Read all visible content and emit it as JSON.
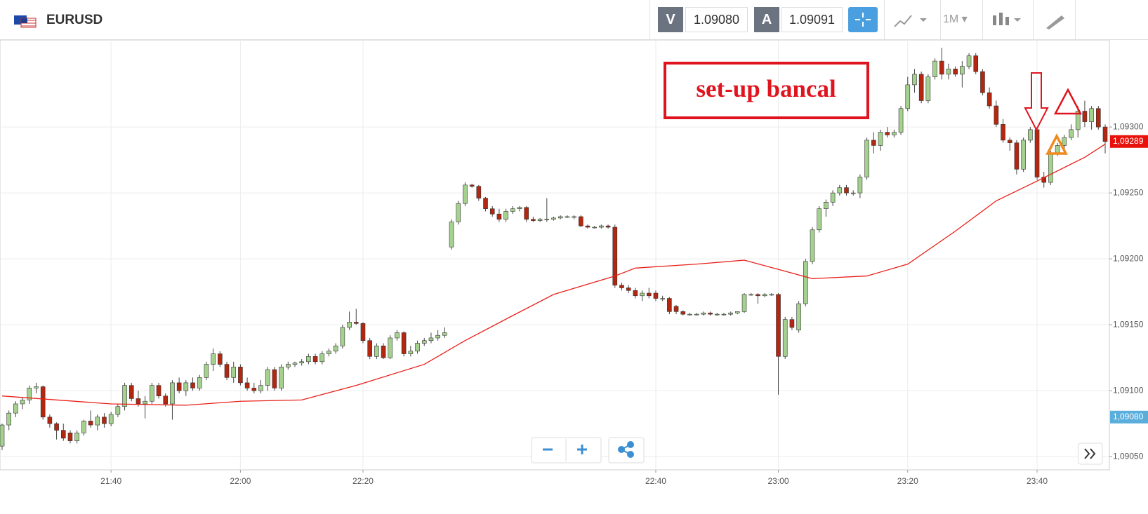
{
  "toolbar": {
    "symbol": "EURUSD",
    "bid_label": "V",
    "bid": "1.09080",
    "ask_label": "A",
    "ask": "1.09091",
    "timeframe": "1M"
  },
  "chart_data": {
    "type": "candlestick",
    "annotation": "set-up bancal",
    "up_color": "#a5d18f",
    "down_color": "#b3260f",
    "ylim": [
      1.0904,
      1.09366
    ],
    "yticks": [
      {
        "value": 1.0905,
        "label": "1,09050"
      },
      {
        "value": 1.091,
        "label": "1,09100"
      },
      {
        "value": 1.0915,
        "label": "1,09150"
      },
      {
        "value": 1.092,
        "label": "1,09200"
      },
      {
        "value": 1.0925,
        "label": "1,09250"
      },
      {
        "value": 1.093,
        "label": "1,09300"
      }
    ],
    "xlim": [
      0,
      162
    ],
    "xticks": [
      {
        "value": 16,
        "label": "21:40"
      },
      {
        "value": 35,
        "label": "22:00"
      },
      {
        "value": 53,
        "label": "22:20"
      },
      {
        "value": 96,
        "label": "22:40"
      },
      {
        "value": 114,
        "label": "23:00"
      },
      {
        "value": 133,
        "label": "23:20"
      },
      {
        "value": 152,
        "label": "23:40"
      }
    ],
    "grid": true,
    "price_tags": [
      {
        "value": 1.09289,
        "label": "1,09289",
        "color": "#e8120c"
      },
      {
        "value": 1.0908,
        "label": "1,09080",
        "color": "#5aaedc"
      }
    ],
    "ma": {
      "color": "#e8201a",
      "x": [
        0,
        16,
        27,
        35,
        44,
        52,
        62,
        68,
        75,
        81,
        90,
        93,
        102,
        109,
        114,
        119,
        127,
        133,
        140,
        146,
        152,
        159,
        162
      ],
      "values": [
        1.09096,
        1.0909,
        1.09089,
        1.09092,
        1.09093,
        1.09104,
        1.0912,
        1.09138,
        1.09157,
        1.09173,
        1.09187,
        1.09193,
        1.09196,
        1.09199,
        1.09192,
        1.09185,
        1.09187,
        1.09196,
        1.09221,
        1.09244,
        1.09259,
        1.09277,
        1.09287
      ]
    },
    "candles": [
      [
        1.09058,
        1.09075,
        1.09055,
        1.09074
      ],
      [
        1.09074,
        1.09085,
        1.0907,
        1.09083
      ],
      [
        1.09083,
        1.09092,
        1.0908,
        1.0909
      ],
      [
        1.0909,
        1.09095,
        1.09086,
        1.09093
      ],
      [
        1.09093,
        1.09104,
        1.0909,
        1.09102
      ],
      [
        1.09102,
        1.09106,
        1.09098,
        1.09103
      ],
      [
        1.09103,
        1.09104,
        1.09078,
        1.0908
      ],
      [
        1.0908,
        1.09082,
        1.09072,
        1.09075
      ],
      [
        1.09075,
        1.09076,
        1.09063,
        1.0907
      ],
      [
        1.0907,
        1.09075,
        1.09062,
        1.09064
      ],
      [
        1.09068,
        1.0907,
        1.0906,
        1.09062
      ],
      [
        1.09062,
        1.0907,
        1.0906,
        1.09068
      ],
      [
        1.09068,
        1.09078,
        1.09066,
        1.09077
      ],
      [
        1.09077,
        1.09085,
        1.09072,
        1.09074
      ],
      [
        1.09074,
        1.09082,
        1.0907,
        1.0908
      ],
      [
        1.0908,
        1.09083,
        1.09072,
        1.09075
      ],
      [
        1.09075,
        1.09084,
        1.09073,
        1.09082
      ],
      [
        1.09082,
        1.0909,
        1.0908,
        1.09088
      ],
      [
        1.09088,
        1.09106,
        1.09085,
        1.09104
      ],
      [
        1.09104,
        1.09106,
        1.09092,
        1.09094
      ],
      [
        1.09094,
        1.091,
        1.09088,
        1.0909
      ],
      [
        1.0909,
        1.09096,
        1.09079,
        1.09092
      ],
      [
        1.09092,
        1.09106,
        1.0909,
        1.09104
      ],
      [
        1.09104,
        1.09106,
        1.09094,
        1.09096
      ],
      [
        1.09096,
        1.09098,
        1.09088,
        1.0909
      ],
      [
        1.0909,
        1.09108,
        1.09078,
        1.09106
      ],
      [
        1.09106,
        1.0911,
        1.09098,
        1.091
      ],
      [
        1.091,
        1.09108,
        1.09096,
        1.09106
      ],
      [
        1.09106,
        1.0911,
        1.091,
        1.09102
      ],
      [
        1.09102,
        1.09112,
        1.091,
        1.0911
      ],
      [
        1.0911,
        1.09122,
        1.09108,
        1.0912
      ],
      [
        1.0912,
        1.09132,
        1.09115,
        1.09128
      ],
      [
        1.09128,
        1.0913,
        1.09118,
        1.0912
      ],
      [
        1.0912,
        1.09122,
        1.09108,
        1.0911
      ],
      [
        1.0911,
        1.09122,
        1.09106,
        1.09118
      ],
      [
        1.09118,
        1.0912,
        1.09104,
        1.09106
      ],
      [
        1.09106,
        1.0911,
        1.091,
        1.09102
      ],
      [
        1.09102,
        1.09106,
        1.09098,
        1.091
      ],
      [
        1.091,
        1.09108,
        1.09098,
        1.09104
      ],
      [
        1.09104,
        1.09118,
        1.091,
        1.09116
      ],
      [
        1.09116,
        1.09118,
        1.091,
        1.09102
      ],
      [
        1.09102,
        1.0912,
        1.091,
        1.09118
      ],
      [
        1.09118,
        1.09122,
        1.09116,
        1.0912
      ],
      [
        1.0912,
        1.09122,
        1.09118,
        1.09121
      ],
      [
        1.09121,
        1.09124,
        1.09119,
        1.09122
      ],
      [
        1.09122,
        1.09128,
        1.0912,
        1.09126
      ],
      [
        1.09126,
        1.09128,
        1.0912,
        1.09122
      ],
      [
        1.09122,
        1.0913,
        1.0912,
        1.09128
      ],
      [
        1.09128,
        1.09132,
        1.09126,
        1.0913
      ],
      [
        1.0913,
        1.09136,
        1.09128,
        1.09134
      ],
      [
        1.09134,
        1.0915,
        1.09132,
        1.09148
      ],
      [
        1.09148,
        1.0916,
        1.09146,
        1.09152
      ],
      [
        1.09152,
        1.09162,
        1.0915,
        1.09151
      ],
      [
        1.09151,
        1.09152,
        1.09136,
        1.09138
      ],
      [
        1.09138,
        1.0914,
        1.09124,
        1.09126
      ],
      [
        1.09126,
        1.09136,
        1.09124,
        1.09134
      ],
      [
        1.09134,
        1.09136,
        1.09124,
        1.09125
      ],
      [
        1.09125,
        1.09142,
        1.09124,
        1.0914
      ],
      [
        1.0914,
        1.09146,
        1.09138,
        1.09144
      ],
      [
        1.09144,
        1.09145,
        1.09126,
        1.09128
      ],
      [
        1.09128,
        1.09134,
        1.09126,
        1.0913
      ],
      [
        1.0913,
        1.09138,
        1.09128,
        1.09136
      ],
      [
        1.09136,
        1.0914,
        1.09134,
        1.09138
      ],
      [
        1.09138,
        1.09144,
        1.09136,
        1.0914
      ],
      [
        1.0914,
        1.09146,
        1.09138,
        1.09142
      ],
      [
        1.09142,
        1.09148,
        1.0914,
        1.09144
      ],
      [
        1.09209,
        1.0923,
        1.09207,
        1.09228
      ],
      [
        1.09228,
        1.09244,
        1.09226,
        1.09242
      ],
      [
        1.09242,
        1.09258,
        1.0924,
        1.09256
      ],
      [
        1.09256,
        1.09257,
        1.09254,
        1.09255
      ],
      [
        1.09255,
        1.09256,
        1.09244,
        1.09246
      ],
      [
        1.09246,
        1.09247,
        1.09236,
        1.09238
      ],
      [
        1.09238,
        1.0924,
        1.09232,
        1.09234
      ],
      [
        1.09234,
        1.09238,
        1.09228,
        1.0923
      ],
      [
        1.0923,
        1.09238,
        1.09228,
        1.09236
      ],
      [
        1.09236,
        1.0924,
        1.09234,
        1.09238
      ],
      [
        1.09238,
        1.0924,
        1.09236,
        1.09239
      ],
      [
        1.09239,
        1.0924,
        1.09228,
        1.0923
      ],
      [
        1.0923,
        1.09232,
        1.09228,
        1.09229
      ],
      [
        1.09229,
        1.09231,
        1.09228,
        1.0923
      ],
      [
        1.0923,
        1.09246,
        1.09228,
        1.0923
      ],
      [
        1.0923,
        1.09232,
        1.09229,
        1.09231
      ],
      [
        1.09231,
        1.09233,
        1.0923,
        1.09232
      ],
      [
        1.09232,
        1.09233,
        1.09231,
        1.09232
      ],
      [
        1.09232,
        1.09233,
        1.0923,
        1.09232
      ],
      [
        1.09232,
        1.09233,
        1.09224,
        1.09225
      ],
      [
        1.09225,
        1.09226,
        1.09223,
        1.09224
      ],
      [
        1.09224,
        1.09225,
        1.09223,
        1.09224
      ],
      [
        1.09224,
        1.09226,
        1.09223,
        1.09225
      ],
      [
        1.09225,
        1.09226,
        1.09223,
        1.09224
      ],
      [
        1.09224,
        1.09226,
        1.09178,
        1.0918
      ],
      [
        1.0918,
        1.09182,
        1.09176,
        1.09178
      ],
      [
        1.09178,
        1.0918,
        1.09174,
        1.09176
      ],
      [
        1.09176,
        1.09178,
        1.0917,
        1.09172
      ],
      [
        1.09172,
        1.09176,
        1.09168,
        1.09174
      ],
      [
        1.09174,
        1.09178,
        1.0917,
        1.09172
      ],
      [
        1.09174,
        1.09176,
        1.09168,
        1.0917
      ],
      [
        1.0917,
        1.09172,
        1.09168,
        1.0917
      ],
      [
        1.0917,
        1.09171,
        1.09158,
        1.0916
      ],
      [
        1.09164,
        1.09165,
        1.09158,
        1.0916
      ],
      [
        1.0916,
        1.09161,
        1.09157,
        1.09158
      ],
      [
        1.09158,
        1.09159,
        1.09157,
        1.09158
      ],
      [
        1.09158,
        1.09159,
        1.09157,
        1.09158
      ],
      [
        1.09158,
        1.0916,
        1.09157,
        1.09159
      ],
      [
        1.09159,
        1.0916,
        1.09157,
        1.09158
      ],
      [
        1.09158,
        1.09159,
        1.09157,
        1.09158
      ],
      [
        1.09158,
        1.09159,
        1.09157,
        1.09158
      ],
      [
        1.09158,
        1.0916,
        1.09157,
        1.09159
      ],
      [
        1.09159,
        1.0916,
        1.09158,
        1.0916
      ],
      [
        1.0916,
        1.09174,
        1.09159,
        1.09173
      ],
      [
        1.09173,
        1.09174,
        1.09172,
        1.09173
      ],
      [
        1.09173,
        1.09174,
        1.09166,
        1.09172
      ],
      [
        1.09172,
        1.09174,
        1.09171,
        1.09173
      ],
      [
        1.09173,
        1.09174,
        1.09172,
        1.09173
      ],
      [
        1.09173,
        1.09174,
        1.09097,
        1.09126
      ],
      [
        1.09126,
        1.09156,
        1.09124,
        1.09154
      ],
      [
        1.09154,
        1.09156,
        1.09146,
        1.09148
      ],
      [
        1.09146,
        1.09168,
        1.09144,
        1.09166
      ],
      [
        1.09166,
        1.092,
        1.09164,
        1.09198
      ],
      [
        1.09198,
        1.09224,
        1.09196,
        1.09222
      ],
      [
        1.09222,
        1.0924,
        1.0922,
        1.09238
      ],
      [
        1.09238,
        1.09245,
        1.09232,
        1.09243
      ],
      [
        1.09243,
        1.09252,
        1.0924,
        1.0925
      ],
      [
        1.0925,
        1.09256,
        1.09248,
        1.09254
      ],
      [
        1.09254,
        1.09256,
        1.09248,
        1.0925
      ],
      [
        1.0925,
        1.09252,
        1.09248,
        1.0925
      ],
      [
        1.0925,
        1.09264,
        1.09246,
        1.09262
      ],
      [
        1.09262,
        1.09292,
        1.0926,
        1.0929
      ],
      [
        1.0929,
        1.09296,
        1.0928,
        1.09286
      ],
      [
        1.09286,
        1.09298,
        1.09282,
        1.09296
      ],
      [
        1.09296,
        1.093,
        1.09292,
        1.09294
      ],
      [
        1.09294,
        1.09298,
        1.09292,
        1.09296
      ],
      [
        1.09296,
        1.09316,
        1.09294,
        1.09314
      ],
      [
        1.09314,
        1.09338,
        1.09312,
        1.09332
      ],
      [
        1.09332,
        1.09344,
        1.09326,
        1.0934
      ],
      [
        1.0934,
        1.09342,
        1.09318,
        1.0932
      ],
      [
        1.0932,
        1.0934,
        1.09318,
        1.09338
      ],
      [
        1.09338,
        1.09352,
        1.09336,
        1.0935
      ],
      [
        1.0935,
        1.0936,
        1.09336,
        1.0934
      ],
      [
        1.0934,
        1.09348,
        1.09336,
        1.09344
      ],
      [
        1.09344,
        1.09346,
        1.09338,
        1.0934
      ],
      [
        1.0934,
        1.0935,
        1.0933,
        1.09346
      ],
      [
        1.09346,
        1.09356,
        1.09344,
        1.09354
      ],
      [
        1.09354,
        1.09356,
        1.0934,
        1.09342
      ],
      [
        1.09342,
        1.09344,
        1.09324,
        1.09326
      ],
      [
        1.09326,
        1.0933,
        1.09314,
        1.09316
      ],
      [
        1.09316,
        1.0932,
        1.093,
        1.09302
      ],
      [
        1.09302,
        1.09306,
        1.09288,
        1.0929
      ],
      [
        1.0929,
        1.09292,
        1.09282,
        1.09288
      ],
      [
        1.09288,
        1.0929,
        1.09264,
        1.09268
      ],
      [
        1.09268,
        1.09292,
        1.09266,
        1.0929
      ],
      [
        1.0929,
        1.093,
        1.09288,
        1.09298
      ],
      [
        1.09298,
        1.093,
        1.0926,
        1.09262
      ],
      [
        1.09262,
        1.09266,
        1.09254,
        1.09258
      ],
      [
        1.09258,
        1.09282,
        1.09256,
        1.0928
      ],
      [
        1.0928,
        1.09288,
        1.09278,
        1.09286
      ],
      [
        1.09286,
        1.09294,
        1.09282,
        1.09292
      ],
      [
        1.09292,
        1.09302,
        1.0929,
        1.09298
      ],
      [
        1.09298,
        1.09316,
        1.09292,
        1.09312
      ],
      [
        1.09312,
        1.0932,
        1.093,
        1.09304
      ],
      [
        1.09304,
        1.09316,
        1.09298,
        1.09314
      ],
      [
        1.09314,
        1.09316,
        1.09298,
        1.093
      ],
      [
        1.093,
        1.09302,
        1.0928,
        1.09289
      ]
    ]
  }
}
